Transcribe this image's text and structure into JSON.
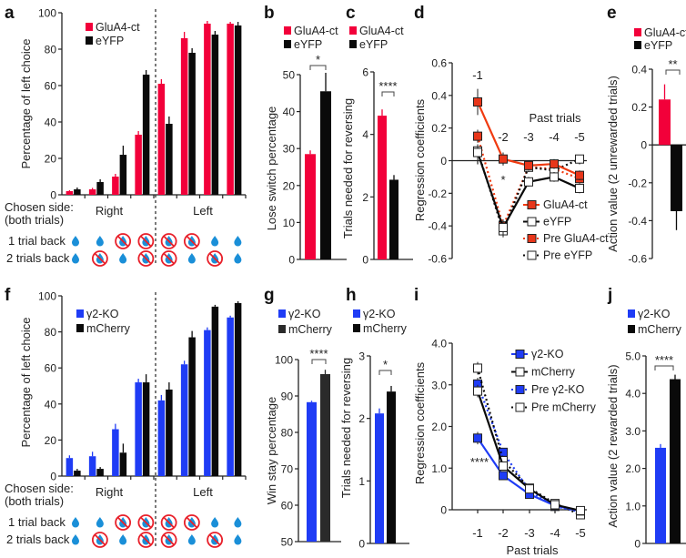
{
  "colors": {
    "red": "#f2003a",
    "black": "#0a0a0a",
    "blue": "#1f3cf5",
    "orange_red": "#f03a10",
    "drop": "#1a8fd8",
    "no_reward": "#e8202a"
  },
  "icons": {
    "reward": "water-drop-icon",
    "no_reward": "no-water-drop-icon"
  },
  "chart_data": [
    {
      "panel": "a",
      "type": "bar",
      "ylabel": "Percentage of left choice",
      "ylim": [
        0,
        100
      ],
      "yticks": [
        "0",
        "20",
        "40",
        "60",
        "80",
        "100"
      ],
      "series": [
        {
          "name": "GluA4-ct",
          "color": "#f2003a",
          "values": [
            2,
            3,
            10,
            33,
            61,
            86,
            94,
            94
          ],
          "errors": [
            0.5,
            0.8,
            1.5,
            2,
            2.5,
            3.5,
            1.5,
            1
          ]
        },
        {
          "name": "eYFP",
          "color": "#0a0a0a",
          "values": [
            3,
            7,
            22,
            66,
            39,
            78,
            88,
            93
          ],
          "errors": [
            1,
            1.5,
            5,
            2.5,
            4,
            2.5,
            2,
            2
          ]
        }
      ],
      "chosen_side_title": [
        "Chosen side:",
        "(both trials)"
      ],
      "sides": [
        "Right",
        "Left"
      ],
      "rows": [
        {
          "label": "1 trial back",
          "pattern": [
            "reward",
            "reward",
            "no_reward",
            "no_reward",
            "no_reward",
            "no_reward",
            "reward",
            "reward"
          ]
        },
        {
          "label": "2 trials back",
          "pattern": [
            "reward",
            "no_reward",
            "reward",
            "no_reward",
            "no_reward",
            "reward",
            "no_reward",
            "reward"
          ]
        }
      ]
    },
    {
      "panel": "b",
      "type": "bar",
      "ylabel": "Lose switch percentage",
      "ylim": [
        0,
        50
      ],
      "yticks": [
        "0",
        "10",
        "20",
        "30",
        "40",
        "50"
      ],
      "series": [
        {
          "name": "GluA4-ct",
          "color": "#f2003a",
          "value": 28.5,
          "error": 1
        },
        {
          "name": "eYFP",
          "color": "#0a0a0a",
          "value": 45.5,
          "error": 5
        }
      ],
      "significance": "*"
    },
    {
      "panel": "c",
      "type": "bar",
      "ylabel": "Trials needed for reversing",
      "ylim": [
        0,
        6
      ],
      "yticks": [
        "0",
        "2",
        "4",
        "6"
      ],
      "series": [
        {
          "name": "GluA4-ct",
          "color": "#f2003a",
          "value": 4.6,
          "error": 0.2
        },
        {
          "name": "eYFP",
          "color": "#0a0a0a",
          "value": 2.55,
          "error": 0.15
        }
      ],
      "significance": "****"
    },
    {
      "panel": "d",
      "type": "line",
      "ylabel": "Regression coefficients",
      "xlabel": "Past trials",
      "ylim": [
        -0.6,
        0.6
      ],
      "yticks": [
        "-0.6",
        "-0.4",
        "-0.2",
        "0",
        "0.2",
        "0.4",
        "0.6"
      ],
      "x": [
        "-1",
        "-2",
        "-3",
        "-4",
        "-5"
      ],
      "series": [
        {
          "name": "GluA4-ct",
          "color": "#f03a10",
          "fill": "#e8361a",
          "dash": false,
          "values": [
            0.36,
            0.01,
            -0.03,
            -0.02,
            -0.09
          ],
          "errors": [
            0.08,
            0.04,
            0.03,
            0.03,
            0.03
          ]
        },
        {
          "name": "eYFP",
          "color": "#0a0a0a",
          "fill": "#ffffff",
          "dash": false,
          "values": [
            0.05,
            -0.41,
            -0.13,
            -0.1,
            -0.17
          ],
          "errors": [
            0.05,
            0.05,
            0.03,
            0.03,
            0.03
          ]
        },
        {
          "name": "Pre GluA4-ct",
          "color": "#f03a10",
          "fill": "#e8361a",
          "dash": true,
          "values": [
            0.15,
            -0.4,
            -0.04,
            -0.05,
            -0.11
          ],
          "errors": [
            0.04,
            0.04,
            0.03,
            0.03,
            0.03
          ]
        },
        {
          "name": "Pre eYFP",
          "color": "#0a0a0a",
          "fill": "#ffffff",
          "dash": true,
          "values": [
            0.06,
            -0.43,
            -0.04,
            -0.06,
            0.01
          ],
          "errors": [
            0.04,
            0.04,
            0.03,
            0.03,
            0.02
          ]
        }
      ],
      "annotation": "*"
    },
    {
      "panel": "e",
      "type": "bar",
      "ylabel": "Action value (2 unrewarded trials)",
      "ylim": [
        -0.6,
        0.4
      ],
      "yticks": [
        "-0.6",
        "-0.4",
        "-0.2",
        "0",
        "0.2",
        "0.4"
      ],
      "series": [
        {
          "name": "GluA4-ct",
          "color": "#f2003a",
          "value": 0.24,
          "error": 0.08
        },
        {
          "name": "eYFP",
          "color": "#0a0a0a",
          "value": -0.35,
          "error": 0.1
        }
      ],
      "significance": "**"
    },
    {
      "panel": "f",
      "type": "bar",
      "ylabel": "Percentage of left choice",
      "ylim": [
        0,
        100
      ],
      "yticks": [
        "0",
        "20",
        "40",
        "60",
        "80",
        "100"
      ],
      "series": [
        {
          "name": "γ2-KO",
          "color": "#1f3cf5",
          "values": [
            10,
            11,
            26,
            52,
            42,
            62,
            81,
            88
          ],
          "errors": [
            1.5,
            2.5,
            3,
            2,
            3,
            2,
            1.5,
            1
          ]
        },
        {
          "name": "mCherry",
          "color": "#0a0a0a",
          "values": [
            3,
            4,
            13,
            52,
            48,
            77,
            94,
            96
          ],
          "errors": [
            1,
            1,
            5,
            4.5,
            4,
            3.5,
            1,
            1
          ]
        }
      ],
      "chosen_side_title": [
        "Chosen side:",
        "(both trials)"
      ],
      "sides": [
        "Right",
        "Left"
      ],
      "rows": [
        {
          "label": "1 trial back",
          "pattern": [
            "reward",
            "reward",
            "no_reward",
            "no_reward",
            "no_reward",
            "no_reward",
            "reward",
            "reward"
          ]
        },
        {
          "label": "2 trials back",
          "pattern": [
            "reward",
            "no_reward",
            "reward",
            "no_reward",
            "no_reward",
            "reward",
            "no_reward",
            "reward"
          ]
        }
      ]
    },
    {
      "panel": "g",
      "type": "bar",
      "ylabel": "Win stay percentage",
      "ylim": [
        50,
        100
      ],
      "yticks": [
        "50",
        "60",
        "70",
        "80",
        "90",
        "100"
      ],
      "series": [
        {
          "name": "γ2-KO",
          "color": "#1f3cf5",
          "value": 88.3,
          "error": 0.4
        },
        {
          "name": "mCherry",
          "color": "#2a2a2a",
          "value": 96,
          "error": 1.2
        }
      ],
      "significance": "****"
    },
    {
      "panel": "h",
      "type": "bar",
      "ylabel": "Trials needed for reversing",
      "ylim": [
        0,
        3
      ],
      "yticks": [
        "0",
        "1",
        "2",
        "3"
      ],
      "series": [
        {
          "name": "γ2-KO",
          "color": "#1f3cf5",
          "value": 2.08,
          "error": 0.08
        },
        {
          "name": "mCherry",
          "color": "#0a0a0a",
          "value": 2.43,
          "error": 0.09
        }
      ],
      "significance": "*"
    },
    {
      "panel": "i",
      "type": "line",
      "ylabel": "Regression coefficients",
      "xlabel": "Past trials",
      "ylim": [
        0,
        4
      ],
      "yticks": [
        "0",
        "1.0",
        "2.0",
        "3.0",
        "4.0"
      ],
      "x": [
        "-1",
        "-2",
        "-3",
        "-4",
        "-5"
      ],
      "series": [
        {
          "name": "γ2-KO",
          "color": "#1f3cf5",
          "fill": "#1f3cf5",
          "dash": false,
          "values": [
            1.72,
            0.82,
            0.37,
            0.1,
            -0.03
          ],
          "errors": [
            0.15,
            0.1,
            0.08,
            0.05,
            0.05
          ]
        },
        {
          "name": "mCherry",
          "color": "#0a0a0a",
          "fill": "#ffffff",
          "dash": false,
          "values": [
            2.85,
            1.05,
            0.5,
            0.12,
            -0.02
          ],
          "errors": [
            0.15,
            0.1,
            0.08,
            0.05,
            0.05
          ]
        },
        {
          "name": "Pre γ2-KO",
          "color": "#1f3cf5",
          "fill": "#1f3cf5",
          "dash": true,
          "values": [
            3.02,
            1.38,
            0.45,
            0.08,
            -0.05
          ],
          "errors": [
            0.15,
            0.1,
            0.08,
            0.05,
            0.05
          ]
        },
        {
          "name": "Pre mCherry",
          "color": "#0a0a0a",
          "fill": "#ffffff",
          "dash": true,
          "values": [
            3.4,
            1.18,
            0.52,
            0.15,
            -0.12
          ],
          "errors": [
            0.15,
            0.1,
            0.08,
            0.05,
            0.05
          ]
        }
      ],
      "annotation": "****"
    },
    {
      "panel": "j",
      "type": "bar",
      "ylabel": "Action value (2 rewarded trials)",
      "ylim": [
        0,
        5
      ],
      "yticks": [
        "0",
        "1.0",
        "2.0",
        "3.0",
        "4.0",
        "5.0"
      ],
      "series": [
        {
          "name": "γ2-KO",
          "color": "#1f3cf5",
          "value": 2.55,
          "error": 0.1
        },
        {
          "name": "mCherry",
          "color": "#0a0a0a",
          "value": 4.38,
          "error": 0.12
        }
      ],
      "significance": "****"
    }
  ]
}
